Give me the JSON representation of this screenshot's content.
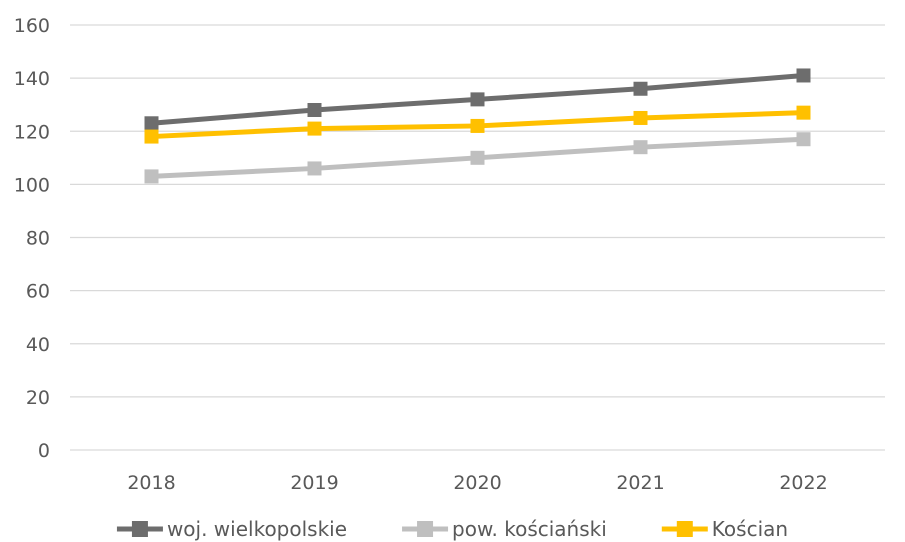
{
  "chart_data": {
    "type": "line",
    "categories": [
      "2018",
      "2019",
      "2020",
      "2021",
      "2022"
    ],
    "y_ticks": [
      "0",
      "20",
      "40",
      "60",
      "80",
      "100",
      "120",
      "140",
      "160"
    ],
    "ylim": [
      0,
      160
    ],
    "grid": true,
    "legend_position": "bottom",
    "series": [
      {
        "name": "woj. wielkopolskie",
        "color": "#6d6d6d",
        "values": [
          123,
          128,
          132,
          136,
          141
        ]
      },
      {
        "name": "pow. kościański",
        "color": "#bfbfbf",
        "values": [
          103,
          106,
          110,
          114,
          117
        ]
      },
      {
        "name": "Kościan",
        "color": "#ffc000",
        "values": [
          118,
          121,
          122,
          125,
          127
        ]
      }
    ]
  }
}
